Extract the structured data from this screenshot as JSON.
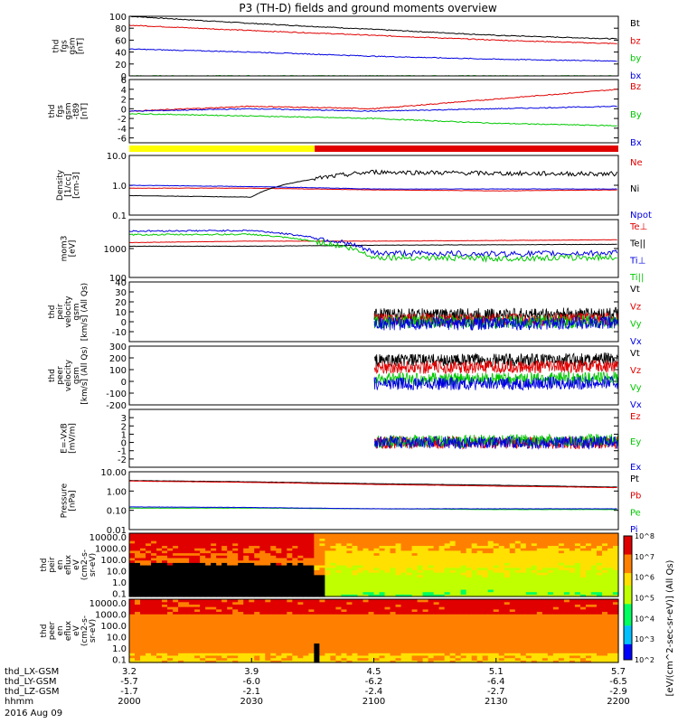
{
  "title": "P3 (TH-D) fields and ground moments overview",
  "date_label": "2016 Aug 09",
  "colors": {
    "black": "#000000",
    "red": "#e00000",
    "green": "#00c800",
    "blue": "#0000e0",
    "yellow": "#ffff00"
  },
  "x_axis": {
    "row_labels": [
      "thd_LX-GSM",
      "thd_LY-GSM",
      "thd_LZ-GSM",
      "hhmm"
    ],
    "ticks": [
      {
        "values": [
          "3.2",
          "-5.7",
          "-1.7",
          "2000"
        ]
      },
      {
        "values": [
          "3.9",
          "-6.0",
          "-2.1",
          "2030"
        ]
      },
      {
        "values": [
          "4.5",
          "-6.2",
          "-2.4",
          "2100"
        ]
      },
      {
        "values": [
          "5.1",
          "-6.4",
          "-2.7",
          "2130"
        ]
      },
      {
        "values": [
          "5.7",
          "-6.5",
          "-2.9",
          "2200"
        ]
      }
    ]
  },
  "spectrogram_colorbar": {
    "label": "[eV/(cm^2-sec-sr-eV)] (All Qs)",
    "ticks": [
      "10^2",
      "10^3",
      "10^4",
      "10^5",
      "10^6",
      "10^7",
      "10^8"
    ]
  },
  "chart_data": [
    {
      "id": "fgs_gsm_mag",
      "type": "line",
      "ylabel_lines": [
        "thd",
        "fgs",
        "gsm",
        "[nT]"
      ],
      "ylim": [
        0,
        100
      ],
      "yticks": [
        "0",
        "20",
        "40",
        "60",
        "80",
        "100"
      ],
      "grid": false,
      "x": [
        "2000",
        "2030",
        "2100",
        "2130",
        "2200"
      ],
      "series": [
        {
          "name": "Bt",
          "color": "#000000",
          "values": [
            100,
            88,
            78,
            68,
            62
          ]
        },
        {
          "name": "bz",
          "color": "#e00000",
          "values": [
            85,
            76,
            68,
            60,
            54
          ]
        },
        {
          "name": "by",
          "color": "#00c800",
          "values": [
            0,
            0,
            0,
            0,
            0
          ]
        },
        {
          "name": "bx",
          "color": "#0000e0",
          "values": [
            45,
            40,
            33,
            28,
            25
          ]
        }
      ]
    },
    {
      "id": "fgs_gsm_dB",
      "type": "line",
      "ylabel_lines": [
        "thd",
        "fgs",
        "gsm",
        "-t89",
        "[nT]"
      ],
      "ylim": [
        -7,
        6
      ],
      "yticks": [
        "-6",
        "-4",
        "-2",
        "0",
        "2",
        "4",
        "6"
      ],
      "grid": false,
      "x": [
        "2000",
        "2030",
        "2100",
        "2130",
        "2200"
      ],
      "series": [
        {
          "name": "Bz",
          "color": "#e00000",
          "values": [
            -0.5,
            0.5,
            0,
            2,
            4
          ]
        },
        {
          "name": "By",
          "color": "#00c800",
          "values": [
            -1,
            -1.5,
            -2,
            -3,
            -3.5
          ]
        },
        {
          "name": "Bx",
          "color": "#0000e0",
          "values": [
            -0.5,
            0,
            -0.5,
            0,
            0.5
          ]
        }
      ]
    },
    {
      "id": "density",
      "type": "line",
      "ylabel_lines": [
        "Density",
        "[1/cc]",
        "[cm-3]"
      ],
      "ylim": [
        0.1,
        10
      ],
      "yscale": "log",
      "yticks": [
        "0.1",
        "1.0",
        "10.0"
      ],
      "grid": false,
      "x": [
        "2000",
        "2030",
        "2100",
        "2130",
        "2200"
      ],
      "series": [
        {
          "name": "Ne",
          "color": "#e00000",
          "values": [
            0.8,
            0.8,
            0.7,
            0.65,
            0.7
          ]
        },
        {
          "name": "Ni",
          "color": "#000000",
          "values": [
            0.45,
            0.4,
            2.8,
            2.5,
            2.4
          ]
        },
        {
          "name": "Npot",
          "color": "#0000e0",
          "values": [
            1.0,
            0.9,
            0.75,
            0.75,
            0.75
          ]
        }
      ]
    },
    {
      "id": "temperature",
      "type": "line",
      "ylabel_lines": [
        "mom3",
        "[eV]"
      ],
      "ylim": [
        100,
        10000
      ],
      "yscale": "log",
      "yticks": [
        "100",
        "1000"
      ],
      "grid": false,
      "x": [
        "2000",
        "2030",
        "2100",
        "2130",
        "2200"
      ],
      "series": [
        {
          "name": "Te⊥",
          "color": "#e00000",
          "values": [
            1600,
            1800,
            1800,
            1900,
            2000
          ]
        },
        {
          "name": "Te||",
          "color": "#000000",
          "values": [
            1200,
            1200,
            1300,
            1350,
            1400
          ]
        },
        {
          "name": "Ti⊥",
          "color": "#0000e0",
          "values": [
            4000,
            4200,
            700,
            650,
            700
          ]
        },
        {
          "name": "Ti||",
          "color": "#00c800",
          "values": [
            3000,
            3100,
            500,
            450,
            500
          ]
        }
      ]
    },
    {
      "id": "peir_velocity",
      "type": "line",
      "ylabel_lines": [
        "thd",
        "peir",
        "velocity",
        "gsm",
        "[km/s] (All Qs)"
      ],
      "ylim": [
        -20,
        40
      ],
      "yticks": [
        "-10",
        "0",
        "10",
        "20",
        "30",
        "40"
      ],
      "grid": false,
      "x": [
        "2000",
        "2030",
        "2100",
        "2130",
        "2200"
      ],
      "series": [
        {
          "name": "Vt",
          "color": "#000000",
          "values": [
            null,
            null,
            7,
            7,
            8
          ]
        },
        {
          "name": "Vz",
          "color": "#e00000",
          "values": [
            null,
            null,
            2,
            2,
            3
          ]
        },
        {
          "name": "Vy",
          "color": "#00c800",
          "values": [
            null,
            null,
            0,
            0,
            0
          ]
        },
        {
          "name": "Vx",
          "color": "#0000e0",
          "values": [
            null,
            null,
            -2,
            -2,
            -1
          ]
        }
      ]
    },
    {
      "id": "peer_velocity",
      "type": "line",
      "ylabel_lines": [
        "thd",
        "peer",
        "velocity",
        "gsm",
        "[km/s] (All Qs)"
      ],
      "ylim": [
        -200,
        300
      ],
      "yticks": [
        "-200",
        "-100",
        "0",
        "100",
        "200",
        "300"
      ],
      "grid": false,
      "x": [
        "2000",
        "2030",
        "2100",
        "2130",
        "2200"
      ],
      "series": [
        {
          "name": "Vt",
          "color": "#000000",
          "values": [
            null,
            null,
            180,
            180,
            190
          ]
        },
        {
          "name": "Vz",
          "color": "#e00000",
          "values": [
            null,
            null,
            120,
            120,
            130
          ]
        },
        {
          "name": "Vy",
          "color": "#00c800",
          "values": [
            null,
            null,
            20,
            20,
            30
          ]
        },
        {
          "name": "Vx",
          "color": "#0000e0",
          "values": [
            null,
            null,
            -20,
            -20,
            -10
          ]
        }
      ]
    },
    {
      "id": "e_field",
      "type": "line",
      "ylabel_lines": [
        "E=-VxB",
        "[mV/m]"
      ],
      "ylim": [
        -3,
        4
      ],
      "yticks": [
        "-2",
        "-1",
        "0",
        "1",
        "2",
        "3"
      ],
      "grid": false,
      "x": [
        "2000",
        "2030",
        "2100",
        "2130",
        "2200"
      ],
      "series": [
        {
          "name": "Ez",
          "color": "#e00000",
          "values": [
            null,
            null,
            0,
            0,
            0
          ]
        },
        {
          "name": "Ey",
          "color": "#00c800",
          "values": [
            null,
            null,
            0.1,
            0.2,
            0.3
          ]
        },
        {
          "name": "Ex",
          "color": "#0000e0",
          "values": [
            null,
            null,
            0,
            0,
            0
          ]
        }
      ]
    },
    {
      "id": "pressure",
      "type": "line",
      "ylabel_lines": [
        "Pressure",
        "[nPa]"
      ],
      "ylim": [
        0.01,
        10
      ],
      "yscale": "log",
      "yticks": [
        "0.01",
        "0.10",
        "1.00",
        "10.00"
      ],
      "grid": false,
      "x": [
        "2000",
        "2030",
        "2100",
        "2130",
        "2200"
      ],
      "series": [
        {
          "name": "Pt",
          "color": "#000000",
          "values": [
            3.5,
            3.0,
            2.4,
            2.0,
            1.6
          ]
        },
        {
          "name": "Pb",
          "color": "#e00000",
          "values": [
            3.3,
            2.8,
            2.2,
            1.8,
            1.5
          ]
        },
        {
          "name": "Pe",
          "color": "#00c800",
          "values": [
            0.13,
            0.13,
            0.12,
            0.11,
            0.11
          ]
        },
        {
          "name": "Pi",
          "color": "#0000e0",
          "values": [
            0.15,
            0.14,
            0.12,
            0.12,
            0.12
          ]
        }
      ]
    },
    {
      "id": "peir_en_eflux",
      "type": "heatmap",
      "ylabel_lines": [
        "thd",
        "peir",
        "en",
        "eflux",
        "eV",
        "(cm2-s-",
        "sr-eV)"
      ],
      "yscale": "log",
      "yticks": [
        "0.1",
        "1.0",
        "10.0",
        "100.0",
        "1000.0",
        "10000.0"
      ]
    },
    {
      "id": "peer_en_eflux",
      "type": "heatmap",
      "ylabel_lines": [
        "thd",
        "peer",
        "en",
        "eflux",
        "eV",
        "(cm2-s-",
        "sr-eV)"
      ],
      "yscale": "log",
      "yticks": [
        "0.1",
        "1.0",
        "10.0",
        "100.0",
        "1000.0",
        "10000.0"
      ]
    }
  ]
}
